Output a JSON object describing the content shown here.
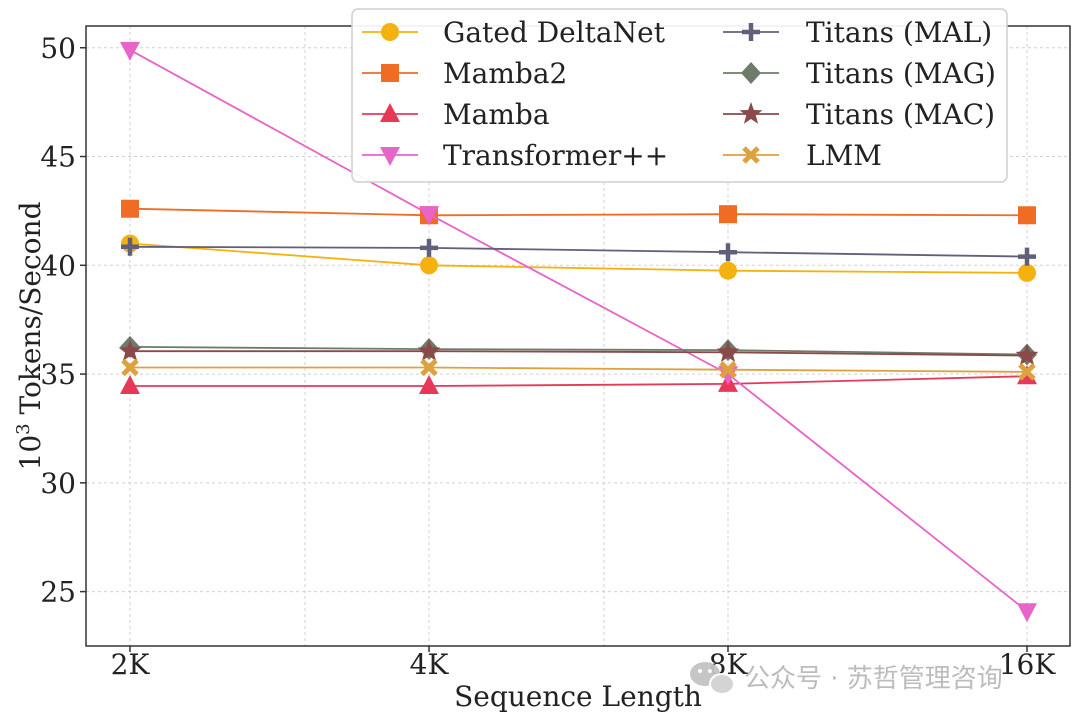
{
  "chart_data": {
    "type": "line",
    "title": "",
    "xlabel": "Sequence Length",
    "ylabel_base": "10",
    "ylabel_exp": "3",
    "ylabel_rest": " Tokens/Second",
    "categories": [
      "2K",
      "4K",
      "8K",
      "16K"
    ],
    "ylim": [
      22.5,
      51.0
    ],
    "yticks": [
      25,
      30,
      35,
      40,
      45,
      50
    ],
    "grid": true,
    "legend_position": "top-right",
    "series": [
      {
        "name": "Gated DeltaNet",
        "color": "#f5b20f",
        "marker": "circle",
        "values": [
          41.0,
          40.0,
          39.75,
          39.65
        ]
      },
      {
        "name": "Mamba2",
        "color": "#f06b24",
        "marker": "square",
        "values": [
          42.6,
          42.3,
          42.35,
          42.3
        ]
      },
      {
        "name": "Mamba",
        "color": "#e8385a",
        "marker": "triangle-up",
        "values": [
          34.45,
          34.45,
          34.55,
          34.9
        ]
      },
      {
        "name": "Transformer++",
        "color": "#e764c9",
        "marker": "triangle-down",
        "values": [
          49.9,
          42.35,
          35.0,
          24.1
        ]
      },
      {
        "name": "Titans (MAL)",
        "color": "#61607b",
        "marker": "plus",
        "values": [
          40.85,
          40.8,
          40.6,
          40.4
        ]
      },
      {
        "name": "Titans (MAG)",
        "color": "#6e7b6a",
        "marker": "diamond",
        "values": [
          36.25,
          36.15,
          36.1,
          35.9
        ]
      },
      {
        "name": "Titans (MAC)",
        "color": "#8a4a4a",
        "marker": "star",
        "values": [
          36.05,
          36.05,
          36.0,
          35.85
        ]
      },
      {
        "name": "LMM",
        "color": "#dda13d",
        "marker": "x",
        "values": [
          35.3,
          35.3,
          35.2,
          35.1
        ]
      }
    ]
  },
  "watermark": {
    "text": "公众号 · 苏哲管理咨询",
    "icon": "wechat-icon"
  }
}
